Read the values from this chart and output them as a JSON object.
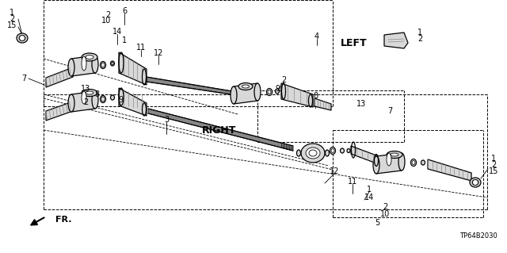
{
  "bg_color": "#ffffff",
  "line_color": "#000000",
  "diagram_code": "TP64B2030",
  "left_label": "LEFT",
  "right_label": "RIGHT",
  "fr_label": "FR.",
  "figsize": [
    6.4,
    3.19
  ],
  "dpi": 100,
  "gray_light": "#d8d8d8",
  "gray_mid": "#b0b0b0",
  "gray_dark": "#888888",
  "gray_very_dark": "#555555",
  "lw_main": 0.9,
  "lw_thin": 0.6,
  "lw_thick": 1.5,
  "font_size": 7,
  "font_size_label": 9
}
